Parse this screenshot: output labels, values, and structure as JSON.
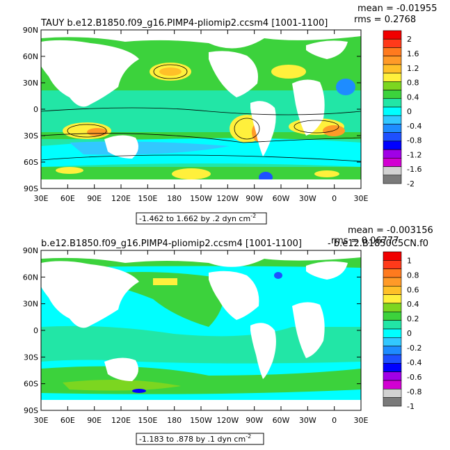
{
  "panels": [
    {
      "title": "TAUY  b.e12.B1850.f09_g16.PIMP4-pliomip2.ccsm4  [1001-1100]",
      "mean_text": "mean = -0.01955",
      "rms_text": "rms = 0.2768",
      "range_text": "-1.462 to 1.662 by .2 dyn cm",
      "range_exp": "-2",
      "colorbar_labels": [
        "2",
        "1.6",
        "1.2",
        "0.8",
        "0.4",
        "0",
        "-0.4",
        "-0.8",
        "-1.2",
        "-1.6",
        "-2"
      ],
      "colors": [
        "#f00000",
        "#ff3a1a",
        "#ff7a1e",
        "#ff9a28",
        "#ffc028",
        "#fff03c",
        "#7cd620",
        "#3cd23c",
        "#22e6a6",
        "#00ffff",
        "#32c8ff",
        "#1e8cff",
        "#1e50ff",
        "#0000ff",
        "#a000e6",
        "#d200d2",
        "#d2d2d2",
        "#7a7a7a"
      ]
    },
    {
      "title": "b.e12.B1850.f09_g16.PIMP4-pliomip2.ccsm4  [1001-1100]",
      "title_suffix": "- b.e12.B1850C5CN.f0",
      "mean_text": "mean = -0.003156",
      "rms_text": "rms = 0.06777",
      "range_text": "-1.183 to .878 by .1 dyn cm",
      "range_exp": "-2",
      "colorbar_labels": [
        "1",
        "0.8",
        "0.6",
        "0.4",
        "0.2",
        "0",
        "-0.2",
        "-0.4",
        "-0.6",
        "-0.8",
        "-1"
      ],
      "colors": [
        "#f00000",
        "#ff3a1a",
        "#ff7a1e",
        "#ff9a28",
        "#ffc028",
        "#fff03c",
        "#7cd620",
        "#3cd23c",
        "#22e6a6",
        "#00ffff",
        "#32c8ff",
        "#1e8cff",
        "#1e50ff",
        "#0000ff",
        "#a000e6",
        "#d200d2",
        "#d2d2d2",
        "#7a7a7a"
      ]
    }
  ],
  "axes": {
    "y_ticks": [
      "90N",
      "60N",
      "30N",
      "0",
      "30S",
      "60S",
      "90S"
    ],
    "x_ticks": [
      "30E",
      "60E",
      "90E",
      "120E",
      "150E",
      "180",
      "150W",
      "120W",
      "90W",
      "60W",
      "30W",
      "0",
      "30E"
    ]
  },
  "chart_data": [
    {
      "type": "heatmap",
      "title": "TAUY  b.e12.B1850.f09_g16.PIMP4-pliomip2.ccsm4  [1001-1100]",
      "variable": "TAUY",
      "units": "dyn cm-2",
      "range": [
        -1.462,
        1.662
      ],
      "contour_interval": 0.2,
      "mean": -0.01955,
      "rms": 0.2768,
      "colorbar_levels": [
        2,
        1.6,
        1.2,
        0.8,
        0.4,
        0,
        -0.4,
        -0.8,
        -1.2,
        -1.6,
        -2
      ],
      "x_range_lon": [
        30,
        390
      ],
      "y_range_lat": [
        -90,
        90
      ]
    },
    {
      "type": "heatmap",
      "title": "b.e12.B1850.f09_g16.PIMP4-pliomip2.ccsm4  [1001-1100] - b.e12.B1850C5CN.f0",
      "units": "dyn cm-2",
      "range": [
        -1.183,
        0.878
      ],
      "contour_interval": 0.1,
      "mean": -0.003156,
      "rms": 0.06777,
      "colorbar_levels": [
        1,
        0.8,
        0.6,
        0.4,
        0.2,
        0,
        -0.2,
        -0.4,
        -0.6,
        -0.8,
        -1
      ],
      "x_range_lon": [
        30,
        390
      ],
      "y_range_lat": [
        -90,
        90
      ]
    }
  ]
}
